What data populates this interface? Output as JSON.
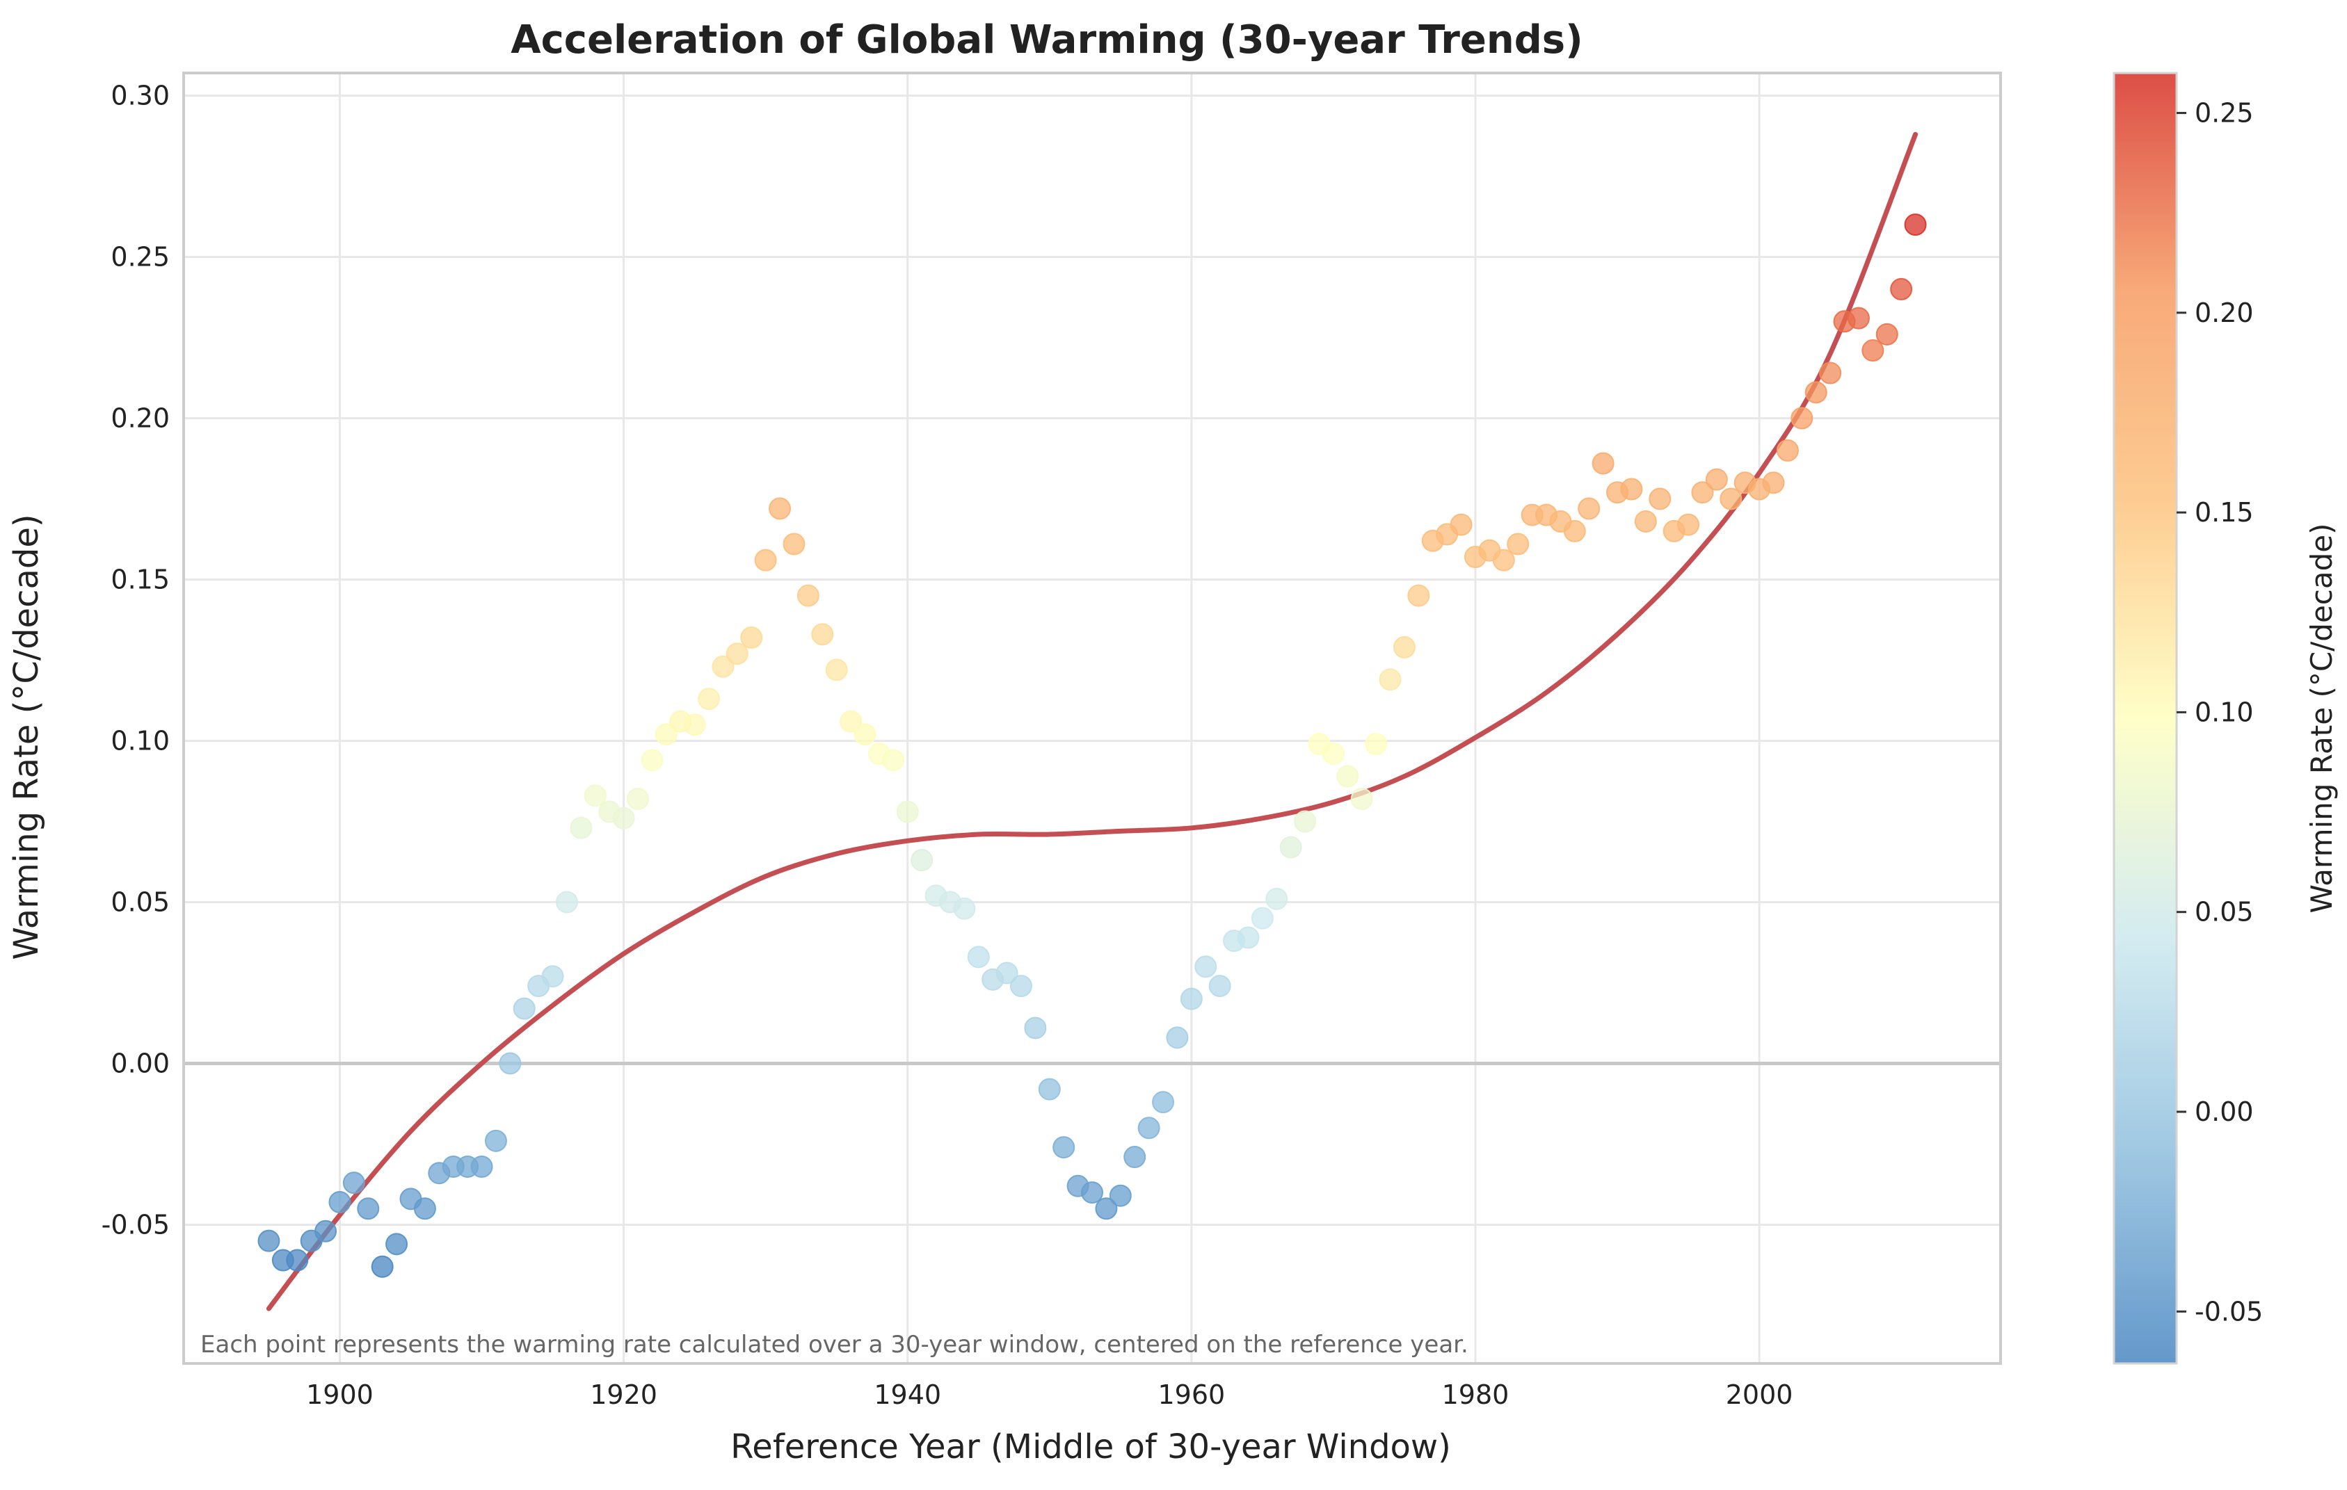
{
  "chart_data": {
    "type": "scatter",
    "title": "Acceleration of Global Warming (30-year Trends)",
    "xlabel": "Reference Year (Middle of 30-year Window)",
    "ylabel": "Warming Rate (°C/decade)",
    "xlim": [
      1889,
      2017
    ],
    "ylim": [
      -0.093,
      0.307
    ],
    "x_ticks": [
      1900,
      1920,
      1940,
      1960,
      1980,
      2000
    ],
    "y_ticks": [
      -0.05,
      0.0,
      0.05,
      0.1,
      0.15,
      0.2,
      0.25,
      0.3
    ],
    "y_tick_labels": [
      "-0.05",
      "0.00",
      "0.05",
      "0.10",
      "0.15",
      "0.20",
      "0.25",
      "0.30"
    ],
    "grid": true,
    "annotation": "Each point represents the warming rate calculated over a 30-year window, centered on the reference year.",
    "colorbar": {
      "label": "Warming Rate (°C/decade)",
      "range": [
        -0.063,
        0.26
      ],
      "ticks": [
        -0.05,
        0.0,
        0.05,
        0.1,
        0.15,
        0.2,
        0.25
      ],
      "tick_labels": [
        "-0.05",
        "0.00",
        "0.05",
        "0.10",
        "0.15",
        "0.20",
        "0.25"
      ],
      "colormap_stops": [
        "#4a87c2",
        "#92c1df",
        "#cde9ef",
        "#ffffbf",
        "#fdc37f",
        "#f79c62",
        "#d73027"
      ]
    },
    "series": [
      {
        "kind": "points",
        "x": [
          1895,
          1896,
          1897,
          1898,
          1899,
          1900,
          1901,
          1902,
          1903,
          1904,
          1905,
          1906,
          1907,
          1908,
          1909,
          1910,
          1911,
          1912,
          1913,
          1914,
          1915,
          1916,
          1917,
          1918,
          1919,
          1920,
          1921,
          1922,
          1923,
          1924,
          1925,
          1926,
          1927,
          1928,
          1929,
          1930,
          1931,
          1932,
          1933,
          1934,
          1935,
          1936,
          1937,
          1938,
          1939,
          1940,
          1941,
          1942,
          1943,
          1944,
          1945,
          1946,
          1947,
          1948,
          1949,
          1950,
          1951,
          1952,
          1953,
          1954,
          1955,
          1956,
          1957,
          1958,
          1959,
          1960,
          1961,
          1962,
          1963,
          1964,
          1965,
          1966,
          1967,
          1968,
          1969,
          1970,
          1971,
          1972,
          1973,
          1974,
          1975,
          1976,
          1977,
          1978,
          1979,
          1980,
          1981,
          1982,
          1983,
          1984,
          1985,
          1986,
          1987,
          1988,
          1989,
          1990,
          1991,
          1992,
          1993,
          1994,
          1995,
          1996,
          1997,
          1998,
          1999,
          2000,
          2001,
          2002,
          2003,
          2004,
          2005,
          2006,
          2007,
          2008,
          2009,
          2010,
          2011
        ],
        "y": [
          -0.055,
          -0.061,
          -0.061,
          -0.055,
          -0.052,
          -0.043,
          -0.037,
          -0.045,
          -0.063,
          -0.056,
          -0.042,
          -0.045,
          -0.034,
          -0.032,
          -0.032,
          -0.032,
          -0.024,
          0.0,
          0.017,
          0.024,
          0.027,
          0.05,
          0.073,
          0.083,
          0.078,
          0.076,
          0.082,
          0.094,
          0.102,
          0.106,
          0.105,
          0.113,
          0.123,
          0.127,
          0.132,
          0.156,
          0.172,
          0.161,
          0.145,
          0.133,
          0.122,
          0.106,
          0.102,
          0.096,
          0.094,
          0.078,
          0.063,
          0.052,
          0.05,
          0.048,
          0.033,
          0.026,
          0.028,
          0.024,
          0.011,
          -0.008,
          -0.026,
          -0.038,
          -0.04,
          -0.045,
          -0.041,
          -0.029,
          -0.02,
          -0.012,
          0.008,
          0.02,
          0.03,
          0.024,
          0.038,
          0.039,
          0.045,
          0.051,
          0.067,
          0.075,
          0.099,
          0.096,
          0.089,
          0.082,
          0.099,
          0.119,
          0.129,
          0.145,
          0.162,
          0.164,
          0.167,
          0.157,
          0.159,
          0.156,
          0.161,
          0.17,
          0.17,
          0.168,
          0.165,
          0.172,
          0.186,
          0.177,
          0.178,
          0.168,
          0.175,
          0.165,
          0.167,
          0.177,
          0.181,
          0.175,
          0.18,
          0.178,
          0.18,
          0.19,
          0.2,
          0.208,
          0.214,
          0.23,
          0.231,
          0.221,
          0.226,
          0.24,
          0.26
        ]
      },
      {
        "kind": "line",
        "color": "#c44e52",
        "x": [
          1895,
          1900,
          1905,
          1910,
          1915,
          1920,
          1925,
          1930,
          1935,
          1940,
          1945,
          1950,
          1955,
          1960,
          1965,
          1970,
          1975,
          1980,
          1985,
          1990,
          1995,
          2000,
          2005,
          2011
        ],
        "y": [
          -0.076,
          -0.047,
          -0.021,
          0.0,
          0.018,
          0.034,
          0.047,
          0.058,
          0.065,
          0.069,
          0.071,
          0.071,
          0.072,
          0.073,
          0.076,
          0.081,
          0.089,
          0.101,
          0.115,
          0.133,
          0.155,
          0.183,
          0.22,
          0.288
        ]
      }
    ]
  }
}
